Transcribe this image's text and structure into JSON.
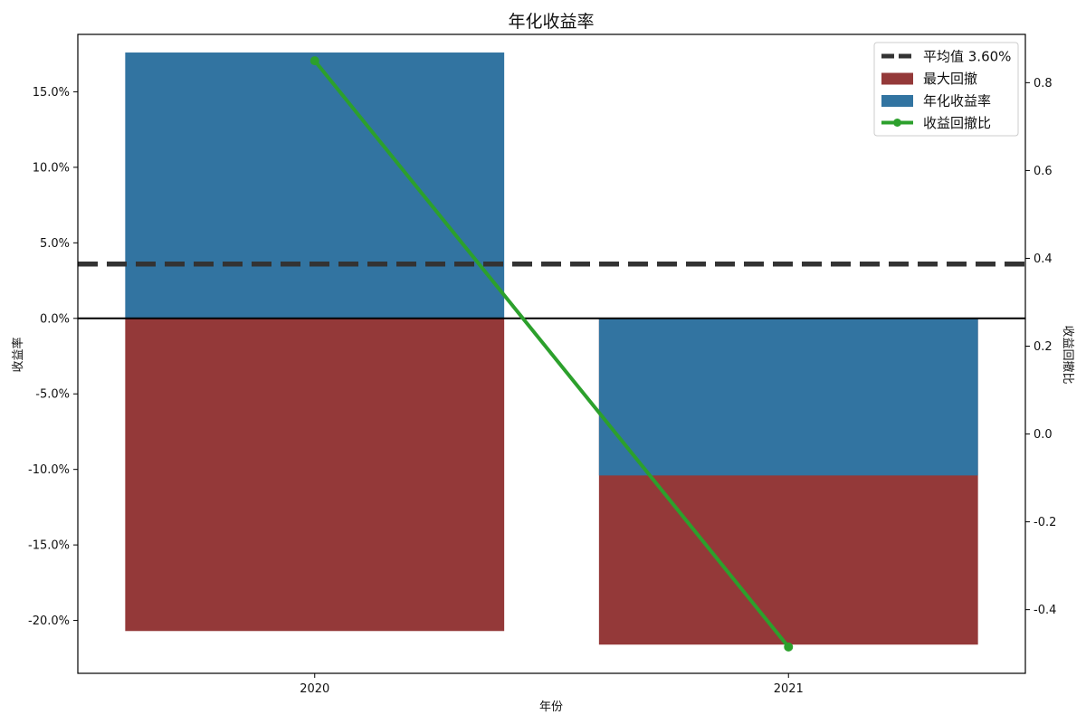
{
  "chart_data": {
    "type": "bar",
    "title": "年化收益率",
    "xlabel": "年份",
    "ylabel": "收益率",
    "y2label": "收益回撤比",
    "categories": [
      "2020",
      "2021"
    ],
    "ylim": [
      -0.235,
      0.188
    ],
    "y2lim": [
      -0.545,
      0.91
    ],
    "y_ticks": [
      0.15,
      0.1,
      0.05,
      0.0,
      -0.05,
      -0.1,
      -0.15,
      -0.2
    ],
    "y_tick_labels": [
      "15.0%",
      "10.0%",
      "5.0%",
      "0.0%",
      "-5.0%",
      "-10.0%",
      "-15.0%",
      "-20.0%"
    ],
    "y2_ticks": [
      0.8,
      0.6,
      0.4,
      0.2,
      0.0,
      -0.2,
      -0.4
    ],
    "y2_tick_labels": [
      "0.8",
      "0.6",
      "0.4",
      "0.2",
      "0.0",
      "-0.2",
      "-0.4"
    ],
    "series": [
      {
        "name": "最大回撤",
        "kind": "bar",
        "axis": "left",
        "color": "#943939",
        "values": [
          -0.207,
          -0.216
        ]
      },
      {
        "name": "年化收益率",
        "kind": "bar",
        "axis": "left",
        "color": "#3274a1",
        "values": [
          0.176,
          -0.104
        ]
      },
      {
        "name": "收益回撤比",
        "kind": "line",
        "axis": "right",
        "color": "#2ca02c",
        "values": [
          0.85,
          -0.485
        ]
      }
    ],
    "reference_line": {
      "label": "平均值 3.60%",
      "value": 0.036,
      "color": "#333333",
      "style": "dashed"
    },
    "zero_line": true,
    "grid": false,
    "legend": {
      "position": "top-right",
      "order": [
        "平均值 3.60%",
        "最大回撤",
        "年化收益率",
        "收益回撤比"
      ]
    }
  }
}
